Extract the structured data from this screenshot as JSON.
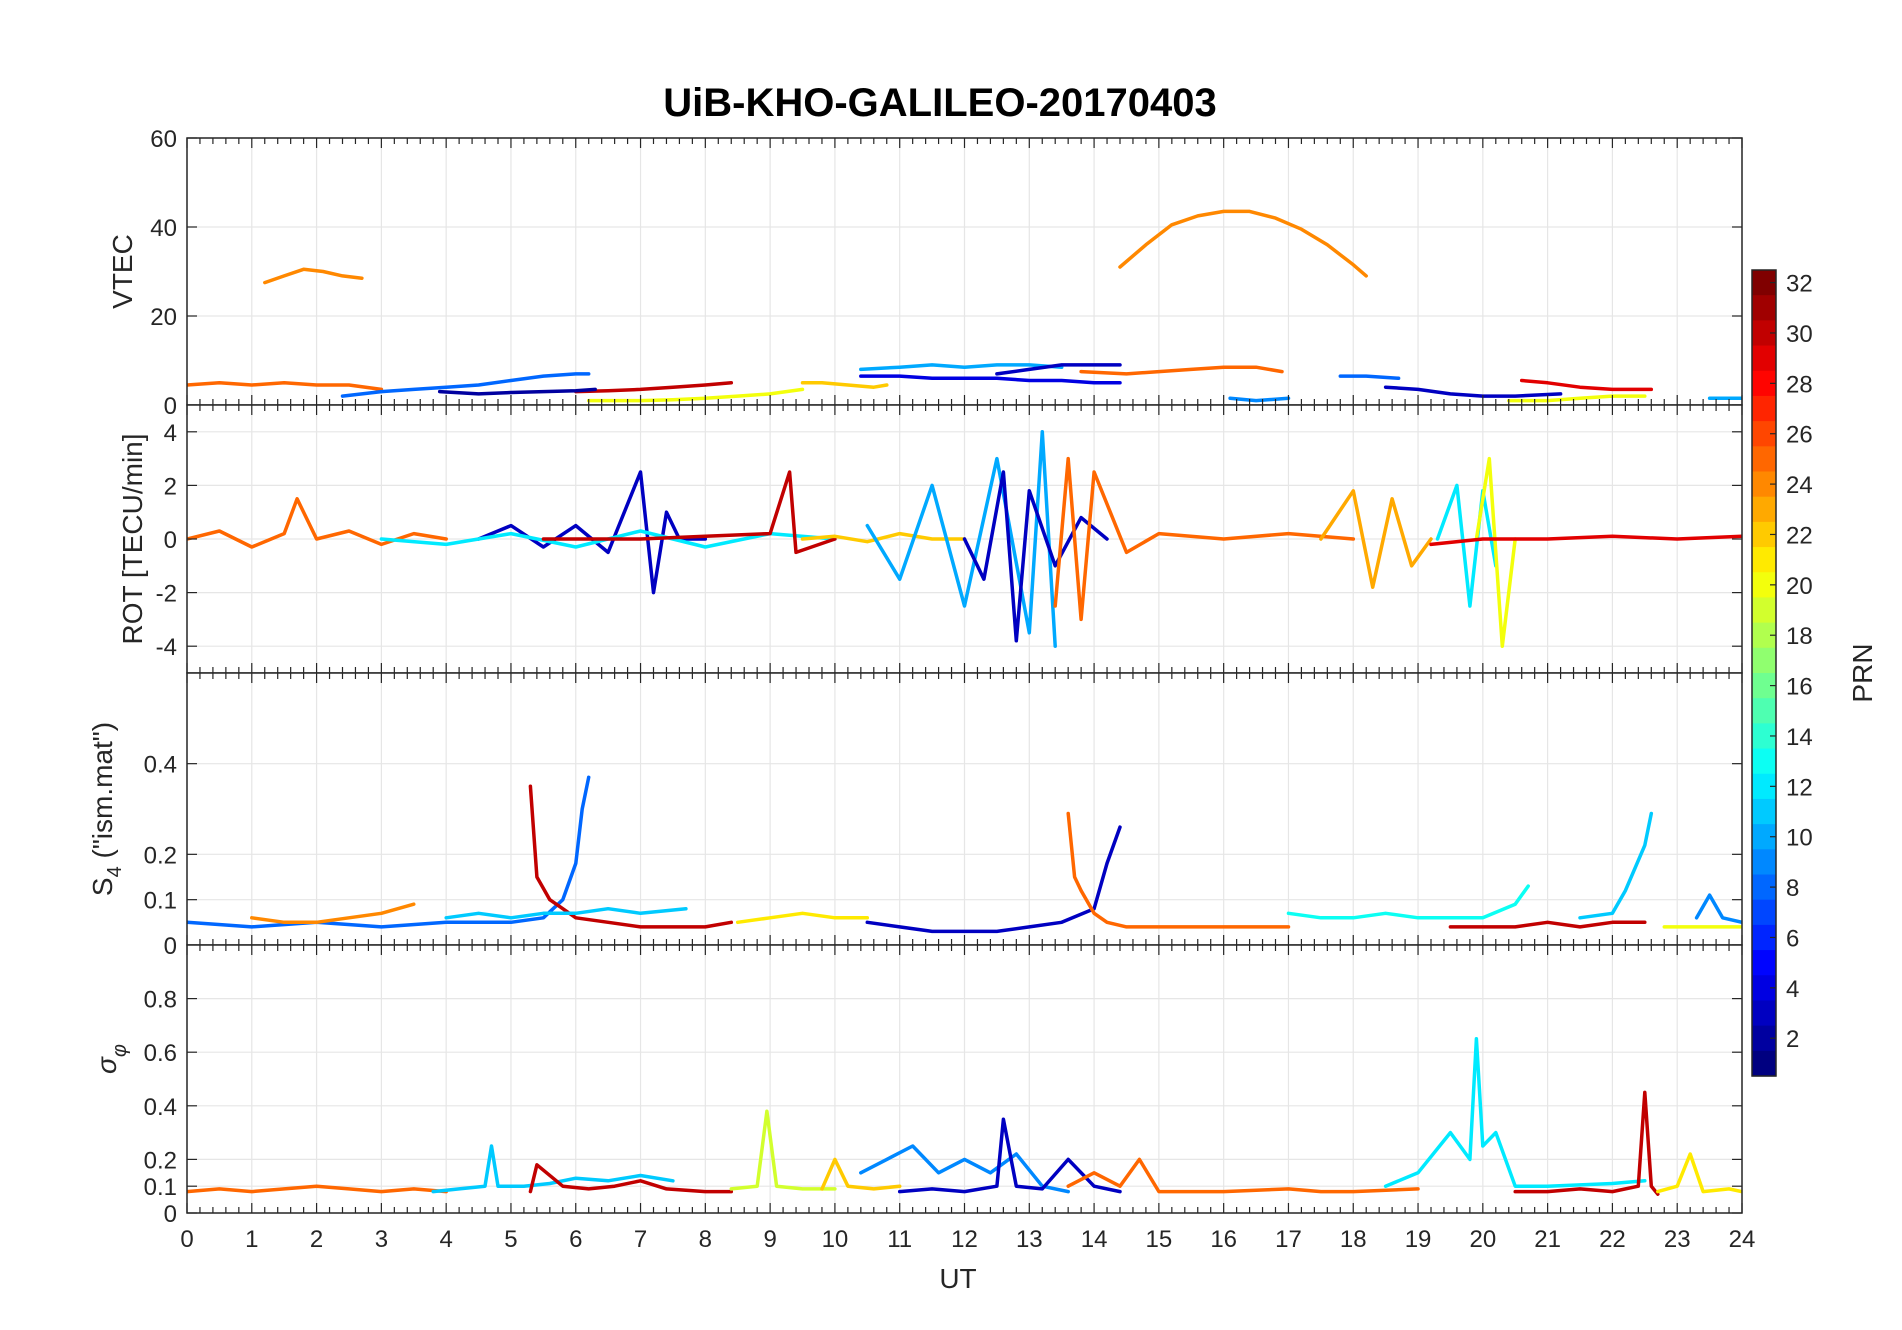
{
  "figure": {
    "title": "UiB-KHO-GALILEO-20170403",
    "xlabel": "UT"
  },
  "colorbar": {
    "label": "PRN",
    "ticks": [
      "2",
      "4",
      "6",
      "8",
      "10",
      "12",
      "14",
      "16",
      "18",
      "20",
      "22",
      "24",
      "26",
      "28",
      "30",
      "32"
    ],
    "range": [
      1,
      32
    ],
    "colormap": "jet"
  },
  "chart_data": [
    {
      "type": "line",
      "ylabel": "VTEC",
      "xlim": [
        0,
        24
      ],
      "ylim": [
        0,
        60
      ],
      "yticks": [
        0,
        20,
        40,
        60
      ],
      "grid": true,
      "series": [
        {
          "prn": 24,
          "x": [
            1.2,
            1.5,
            1.8,
            2.1,
            2.4,
            2.7
          ],
          "y": [
            27.5,
            29,
            30.5,
            30,
            29,
            28.5
          ]
        },
        {
          "prn": 24,
          "x": [
            14.4,
            14.8,
            15.2,
            15.6,
            16.0,
            16.4,
            16.8,
            17.2,
            17.6,
            18.0,
            18.2
          ],
          "y": [
            31,
            36,
            40.5,
            42.5,
            43.5,
            43.5,
            42,
            39.5,
            36,
            31.5,
            29
          ]
        },
        {
          "prn": 25,
          "x": [
            0,
            0.5,
            1,
            1.5,
            2,
            2.5,
            3
          ],
          "y": [
            4.5,
            5,
            4.5,
            5,
            4.5,
            4.5,
            3.5
          ]
        },
        {
          "prn": 8,
          "x": [
            2.4,
            3,
            3.5,
            4,
            4.5,
            5,
            5.5,
            6,
            6.2
          ],
          "y": [
            2,
            3,
            3.5,
            4,
            4.5,
            5.5,
            6.5,
            7,
            7
          ]
        },
        {
          "prn": 30,
          "x": [
            6,
            6.5,
            7,
            7.5,
            8,
            8.4
          ],
          "y": [
            3,
            3.2,
            3.5,
            4,
            4.5,
            5
          ]
        },
        {
          "prn": 2,
          "x": [
            3.9,
            4.5,
            5,
            5.5,
            6,
            6.3
          ],
          "y": [
            3,
            2.5,
            2.8,
            3,
            3.2,
            3.5
          ]
        },
        {
          "prn": 20,
          "x": [
            6.2,
            7,
            7.5,
            8,
            8.5,
            9,
            9.5
          ],
          "y": [
            1,
            1,
            1.2,
            1.5,
            2,
            2.5,
            3.5
          ]
        },
        {
          "prn": 22,
          "x": [
            9.5,
            9.8,
            10.2,
            10.6,
            10.8
          ],
          "y": [
            5,
            5,
            4.5,
            4,
            4.5
          ]
        },
        {
          "prn": 10,
          "x": [
            10.4,
            11,
            11.5,
            12,
            12.5,
            13,
            13.5
          ],
          "y": [
            8,
            8.5,
            9,
            8.5,
            9,
            9,
            8.5
          ]
        },
        {
          "prn": 4,
          "x": [
            10.4,
            11,
            11.5,
            12,
            12.5,
            13,
            13.5,
            14,
            14.4
          ],
          "y": [
            6.5,
            6.5,
            6,
            6,
            6,
            5.5,
            5.5,
            5,
            5
          ]
        },
        {
          "prn": 3,
          "x": [
            12.5,
            13,
            13.5,
            14,
            14.4
          ],
          "y": [
            7,
            8,
            9,
            9,
            9
          ]
        },
        {
          "prn": 25,
          "x": [
            13.8,
            14.5,
            15,
            15.5,
            16,
            16.5,
            16.9
          ],
          "y": [
            7.5,
            7,
            7.5,
            8,
            8.5,
            8.5,
            7.5
          ]
        },
        {
          "prn": 9,
          "x": [
            16.1,
            16.5,
            17
          ],
          "y": [
            1.5,
            1,
            1.5
          ]
        },
        {
          "prn": 8,
          "x": [
            17.8,
            18.2,
            18.7
          ],
          "y": [
            6.5,
            6.5,
            6
          ]
        },
        {
          "prn": 3,
          "x": [
            18.5,
            19,
            19.5,
            20,
            20.5,
            21.2
          ],
          "y": [
            4,
            3.5,
            2.5,
            2,
            2,
            2.5
          ]
        },
        {
          "prn": 29,
          "x": [
            20.6,
            21,
            21.5,
            22,
            22.6
          ],
          "y": [
            5.5,
            5,
            4,
            3.5,
            3.5
          ]
        },
        {
          "prn": 20,
          "x": [
            20.4,
            21,
            21.5,
            22,
            22.5
          ],
          "y": [
            1,
            1,
            1.5,
            2,
            2
          ]
        },
        {
          "prn": 10,
          "x": [
            23.5,
            24
          ],
          "y": [
            1.5,
            1.5
          ]
        }
      ]
    },
    {
      "type": "line",
      "ylabel": "ROT [TECU/min]",
      "xlim": [
        0,
        24
      ],
      "ylim": [
        -5,
        5
      ],
      "yticks": [
        -4,
        -2,
        0,
        2,
        4
      ],
      "grid": true,
      "series": [
        {
          "prn": 25,
          "x": [
            0,
            0.5,
            1,
            1.5,
            1.7,
            2,
            2.5,
            3,
            3.5,
            4
          ],
          "y": [
            0,
            0.3,
            -0.3,
            0.2,
            1.5,
            0,
            0.3,
            -0.2,
            0.2,
            0
          ]
        },
        {
          "prn": 3,
          "x": [
            4.5,
            5,
            5.5,
            6,
            6.5,
            7,
            7.2,
            7.4,
            7.6,
            8
          ],
          "y": [
            0,
            0.5,
            -0.3,
            0.5,
            -0.5,
            2.5,
            -2,
            1,
            0,
            0
          ]
        },
        {
          "prn": 12,
          "x": [
            3,
            4,
            5,
            6,
            7,
            8,
            9,
            10
          ],
          "y": [
            0,
            -0.2,
            0.2,
            -0.3,
            0.3,
            -0.3,
            0.2,
            0
          ]
        },
        {
          "prn": 30,
          "x": [
            5.5,
            6,
            7,
            8,
            9,
            9.3,
            9.4,
            10
          ],
          "y": [
            0,
            0,
            0,
            0.1,
            0.2,
            2.5,
            -0.5,
            0
          ]
        },
        {
          "prn": 22,
          "x": [
            9.5,
            10,
            10.5,
            11,
            11.5,
            12
          ],
          "y": [
            0,
            0.1,
            -0.1,
            0.2,
            0,
            0
          ]
        },
        {
          "prn": 10,
          "x": [
            10.5,
            11,
            11.5,
            12,
            12.5,
            13,
            13.2,
            13.4
          ],
          "y": [
            0.5,
            -1.5,
            2,
            -2.5,
            3,
            -3.5,
            4,
            -4
          ]
        },
        {
          "prn": 3,
          "x": [
            12,
            12.3,
            12.6,
            12.8,
            13,
            13.4,
            13.8,
            14.2
          ],
          "y": [
            0,
            -1.5,
            2.5,
            -3.8,
            1.8,
            -1,
            0.8,
            0
          ]
        },
        {
          "prn": 25,
          "x": [
            13.4,
            13.6,
            13.8,
            14,
            14.5,
            15,
            16,
            17,
            18
          ],
          "y": [
            -2.5,
            3,
            -3,
            2.5,
            -0.5,
            0.2,
            0,
            0.2,
            0
          ]
        },
        {
          "prn": 23,
          "x": [
            17.5,
            18,
            18.3,
            18.6,
            18.9,
            19.2
          ],
          "y": [
            0,
            1.8,
            -1.8,
            1.5,
            -1,
            0
          ]
        },
        {
          "prn": 12,
          "x": [
            19.3,
            19.6,
            19.8,
            20,
            20.2
          ],
          "y": [
            0,
            2,
            -2.5,
            1.8,
            -1
          ]
        },
        {
          "prn": 20,
          "x": [
            19.9,
            20.1,
            20.3,
            20.5
          ],
          "y": [
            0,
            3,
            -4,
            0
          ]
        },
        {
          "prn": 29,
          "x": [
            19.2,
            20,
            21,
            22,
            23,
            24
          ],
          "y": [
            -0.2,
            0,
            0,
            0.1,
            0,
            0.1
          ]
        }
      ]
    },
    {
      "type": "line",
      "ylabel": "S4 (\"ism.mat\")",
      "xlim": [
        0,
        24
      ],
      "ylim": [
        0,
        0.6
      ],
      "yticks": [
        0,
        0.1,
        0.2,
        0.4
      ],
      "grid": true,
      "series": [
        {
          "prn": 8,
          "x": [
            0,
            1,
            2,
            3,
            4,
            5,
            5.5,
            5.8,
            6,
            6.1,
            6.2
          ],
          "y": [
            0.05,
            0.04,
            0.05,
            0.04,
            0.05,
            0.05,
            0.06,
            0.1,
            0.18,
            0.3,
            0.37
          ]
        },
        {
          "prn": 30,
          "x": [
            5.3,
            5.4,
            5.6,
            5.8,
            6,
            6.5,
            7,
            8,
            8.4
          ],
          "y": [
            0.35,
            0.15,
            0.1,
            0.08,
            0.06,
            0.05,
            0.04,
            0.04,
            0.05
          ]
        },
        {
          "prn": 24,
          "x": [
            1,
            1.5,
            2,
            2.5,
            3,
            3.5
          ],
          "y": [
            0.06,
            0.05,
            0.05,
            0.06,
            0.07,
            0.09
          ]
        },
        {
          "prn": 11,
          "x": [
            4,
            4.5,
            5,
            5.5,
            6,
            6.5,
            7,
            7.7
          ],
          "y": [
            0.06,
            0.07,
            0.06,
            0.07,
            0.07,
            0.08,
            0.07,
            0.08
          ]
        },
        {
          "prn": 21,
          "x": [
            8.5,
            9,
            9.5,
            10,
            10.5
          ],
          "y": [
            0.05,
            0.06,
            0.07,
            0.06,
            0.06
          ]
        },
        {
          "prn": 3,
          "x": [
            10.5,
            11,
            11.5,
            12,
            12.5,
            13,
            13.5,
            14,
            14.2,
            14.4
          ],
          "y": [
            0.05,
            0.04,
            0.03,
            0.03,
            0.03,
            0.04,
            0.05,
            0.08,
            0.18,
            0.26
          ]
        },
        {
          "prn": 25,
          "x": [
            13.6,
            13.7,
            13.8,
            14,
            14.2,
            14.5,
            15,
            16,
            17
          ],
          "y": [
            0.29,
            0.15,
            0.12,
            0.07,
            0.05,
            0.04,
            0.04,
            0.04,
            0.04
          ]
        },
        {
          "prn": 13,
          "x": [
            17,
            17.5,
            18,
            18.5,
            19,
            19.5,
            20,
            20.5,
            20.7
          ],
          "y": [
            0.07,
            0.06,
            0.06,
            0.07,
            0.06,
            0.06,
            0.06,
            0.09,
            0.13
          ]
        },
        {
          "prn": 11,
          "x": [
            21.5,
            22,
            22.2,
            22.5,
            22.6
          ],
          "y": [
            0.06,
            0.07,
            0.12,
            0.22,
            0.29
          ]
        },
        {
          "prn": 30,
          "x": [
            19.5,
            20,
            20.5,
            21,
            21.5,
            22,
            22.5
          ],
          "y": [
            0.04,
            0.04,
            0.04,
            0.05,
            0.04,
            0.05,
            0.05
          ]
        },
        {
          "prn": 20,
          "x": [
            22.8,
            23.2,
            23.6,
            24
          ],
          "y": [
            0.04,
            0.04,
            0.04,
            0.04
          ]
        },
        {
          "prn": 9,
          "x": [
            23.3,
            23.5,
            23.7,
            24
          ],
          "y": [
            0.06,
            0.11,
            0.06,
            0.05
          ]
        }
      ]
    },
    {
      "type": "line",
      "ylabel": "σ φ",
      "xlim": [
        0,
        24
      ],
      "ylim": [
        0,
        1
      ],
      "yticks": [
        0,
        0.1,
        0.2,
        0.4,
        0.6,
        0.8
      ],
      "grid": true,
      "series": [
        {
          "prn": 25,
          "x": [
            0,
            0.5,
            1,
            1.5,
            2,
            2.5,
            3,
            3.5,
            4
          ],
          "y": [
            0.08,
            0.09,
            0.08,
            0.09,
            0.1,
            0.09,
            0.08,
            0.09,
            0.08
          ]
        },
        {
          "prn": 11,
          "x": [
            3.8,
            4.2,
            4.6,
            4.7,
            4.8,
            5.2,
            5.6,
            6,
            6.5,
            7,
            7.5
          ],
          "y": [
            0.08,
            0.09,
            0.1,
            0.25,
            0.1,
            0.1,
            0.11,
            0.13,
            0.12,
            0.14,
            0.12
          ]
        },
        {
          "prn": 30,
          "x": [
            5.3,
            5.4,
            5.8,
            6.2,
            6.6,
            7,
            7.4,
            8,
            8.4
          ],
          "y": [
            0.08,
            0.18,
            0.1,
            0.09,
            0.1,
            0.12,
            0.09,
            0.08,
            0.08
          ]
        },
        {
          "prn": 19,
          "x": [
            8.4,
            8.8,
            8.95,
            9.1,
            9.5,
            10
          ],
          "y": [
            0.09,
            0.1,
            0.38,
            0.1,
            0.09,
            0.09
          ]
        },
        {
          "prn": 22,
          "x": [
            9.8,
            10,
            10.2,
            10.6,
            11
          ],
          "y": [
            0.09,
            0.2,
            0.1,
            0.09,
            0.1
          ]
        },
        {
          "prn": 9,
          "x": [
            10.4,
            10.8,
            11.2,
            11.6,
            12,
            12.4,
            12.8,
            13.2,
            13.6
          ],
          "y": [
            0.15,
            0.2,
            0.25,
            0.15,
            0.2,
            0.15,
            0.22,
            0.1,
            0.08
          ]
        },
        {
          "prn": 3,
          "x": [
            11,
            11.5,
            12,
            12.5,
            12.6,
            12.8,
            13.2,
            13.6,
            14,
            14.4
          ],
          "y": [
            0.08,
            0.09,
            0.08,
            0.1,
            0.35,
            0.1,
            0.09,
            0.2,
            0.1,
            0.08
          ]
        },
        {
          "prn": 25,
          "x": [
            13.6,
            14,
            14.4,
            14.7,
            15,
            16,
            17,
            17.5,
            18,
            19
          ],
          "y": [
            0.1,
            0.15,
            0.1,
            0.2,
            0.08,
            0.08,
            0.09,
            0.08,
            0.08,
            0.09
          ]
        },
        {
          "prn": 12,
          "x": [
            18.5,
            19,
            19.5,
            19.8,
            19.9,
            20,
            20.2,
            20.5,
            21,
            22,
            22.5
          ],
          "y": [
            0.1,
            0.15,
            0.3,
            0.2,
            0.65,
            0.25,
            0.3,
            0.1,
            0.1,
            0.11,
            0.12
          ]
        },
        {
          "prn": 30,
          "x": [
            20.5,
            21,
            21.5,
            22,
            22.4,
            22.5,
            22.6,
            22.7
          ],
          "y": [
            0.08,
            0.08,
            0.09,
            0.08,
            0.1,
            0.45,
            0.1,
            0.07
          ]
        },
        {
          "prn": 21,
          "x": [
            22.7,
            23,
            23.2,
            23.4,
            23.8,
            24
          ],
          "y": [
            0.08,
            0.1,
            0.22,
            0.08,
            0.09,
            0.08
          ]
        }
      ]
    }
  ]
}
